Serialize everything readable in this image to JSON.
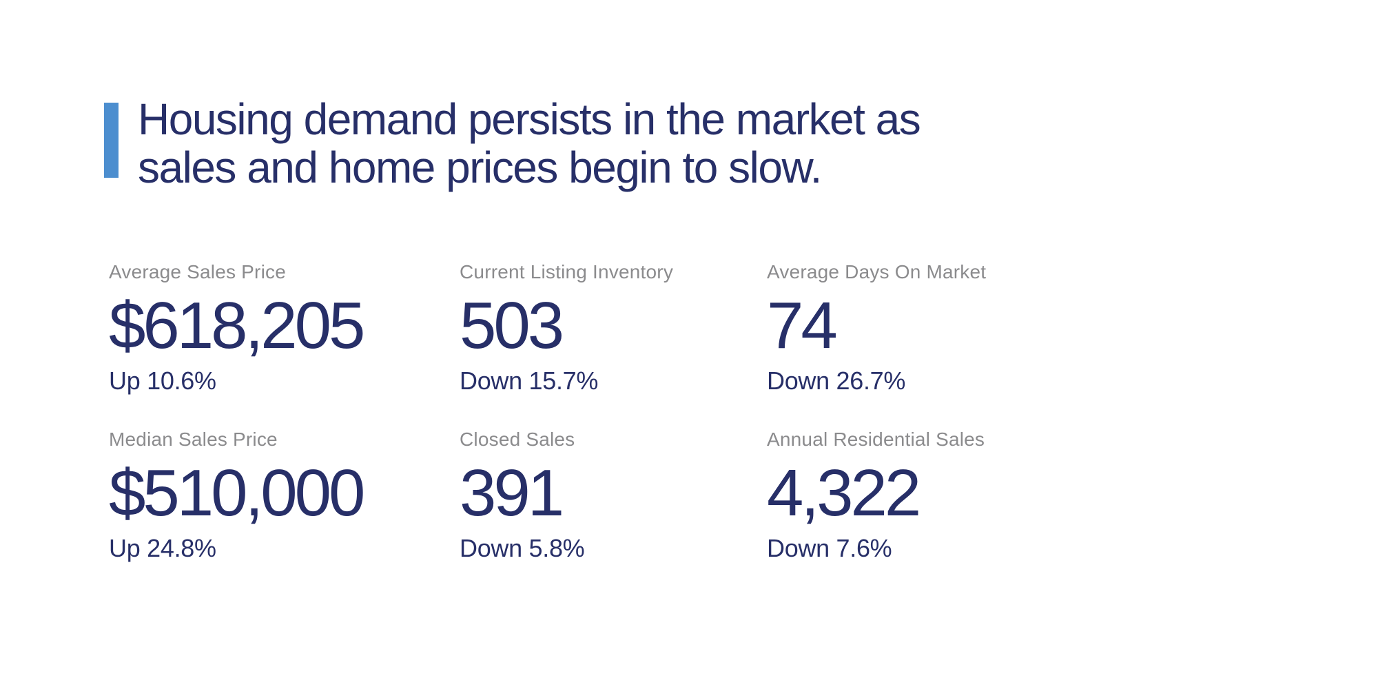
{
  "headline": {
    "line1": "Housing demand persists in the market as",
    "line2": "sales and home prices begin to slow."
  },
  "stats": [
    {
      "label": "Average Sales Price",
      "value": "$618,205",
      "change": "Up 10.6%"
    },
    {
      "label": "Current Listing Inventory",
      "value": "503",
      "change": "Down 15.7%"
    },
    {
      "label": "Average Days On Market",
      "value": "74",
      "change": "Down 26.7%"
    },
    {
      "label": "Median Sales Price",
      "value": "$510,000",
      "change": "Up 24.8%"
    },
    {
      "label": "Closed Sales",
      "value": "391",
      "change": "Down 5.8%"
    },
    {
      "label": "Annual Residential Sales",
      "value": "4,322",
      "change": "Down 7.6%"
    }
  ],
  "colors": {
    "navy": "#272f68",
    "accent_blue": "#4c8ecf",
    "label_gray": "#8b8b8d",
    "background": "#ffffff"
  }
}
